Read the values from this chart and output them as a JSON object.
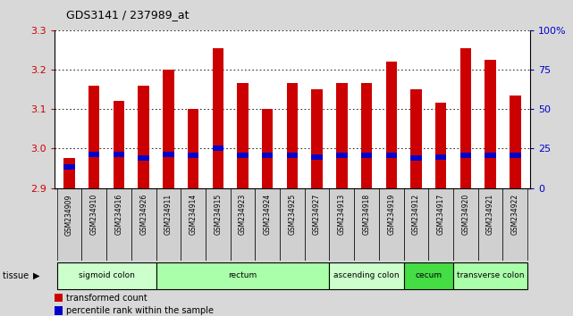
{
  "title": "GDS3141 / 237989_at",
  "samples": [
    "GSM234909",
    "GSM234910",
    "GSM234916",
    "GSM234926",
    "GSM234911",
    "GSM234914",
    "GSM234915",
    "GSM234923",
    "GSM234924",
    "GSM234925",
    "GSM234927",
    "GSM234913",
    "GSM234918",
    "GSM234919",
    "GSM234912",
    "GSM234917",
    "GSM234920",
    "GSM234921",
    "GSM234922"
  ],
  "red_values": [
    2.975,
    3.16,
    3.12,
    3.16,
    3.2,
    3.1,
    3.255,
    3.165,
    3.1,
    3.165,
    3.15,
    3.165,
    3.165,
    3.22,
    3.15,
    3.115,
    3.255,
    3.225,
    3.135
  ],
  "blue_values": [
    2.953,
    2.985,
    2.985,
    2.975,
    2.985,
    2.982,
    3.0,
    2.982,
    2.982,
    2.982,
    2.978,
    2.982,
    2.982,
    2.982,
    2.975,
    2.978,
    2.982,
    2.982,
    2.982
  ],
  "ymin": 2.9,
  "ymax": 3.3,
  "yticks": [
    2.9,
    3.0,
    3.1,
    3.2,
    3.3
  ],
  "right_yticks": [
    0,
    25,
    50,
    75,
    100
  ],
  "right_ytick_labels": [
    "0",
    "25",
    "50",
    "75",
    "100%"
  ],
  "tissues": [
    {
      "label": "sigmoid colon",
      "start": 0,
      "end": 4,
      "color": "#ccffcc"
    },
    {
      "label": "rectum",
      "start": 4,
      "end": 11,
      "color": "#aaffaa"
    },
    {
      "label": "ascending colon",
      "start": 11,
      "end": 14,
      "color": "#ccffcc"
    },
    {
      "label": "cecum",
      "start": 14,
      "end": 16,
      "color": "#44dd44"
    },
    {
      "label": "transverse colon",
      "start": 16,
      "end": 19,
      "color": "#aaffaa"
    }
  ],
  "bar_color": "#cc0000",
  "blue_color": "#0000cc",
  "bar_width": 0.45,
  "background_color": "#d8d8d8",
  "plot_bg": "#ffffff",
  "grid_color": "#000000",
  "axis_label_color_left": "#cc0000",
  "axis_label_color_right": "#0000cc",
  "xtick_bg": "#d0d0d0"
}
